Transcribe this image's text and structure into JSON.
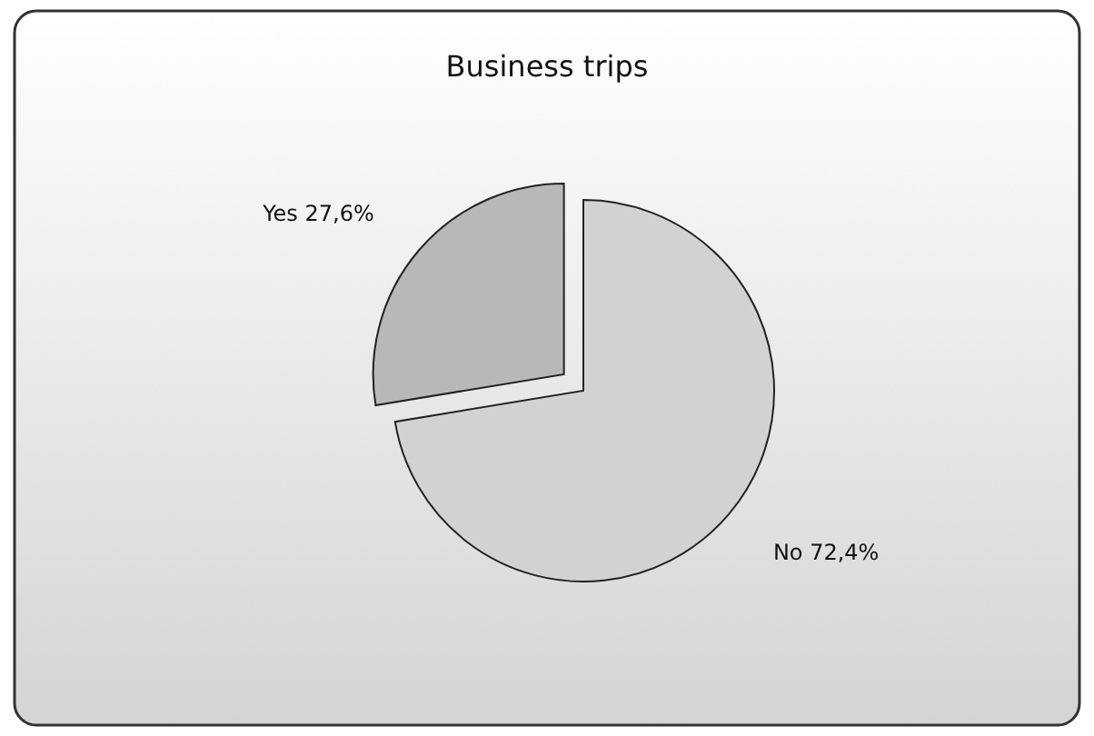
{
  "chart_data": {
    "type": "pie",
    "title": "Business trips",
    "categories": [
      "Yes",
      "No"
    ],
    "values": [
      27.6,
      72.4
    ],
    "colors": [
      "#b8b8b8",
      "#d2d2d2"
    ],
    "value_labels": [
      "27,6%",
      "72,4%"
    ],
    "legend": false
  }
}
